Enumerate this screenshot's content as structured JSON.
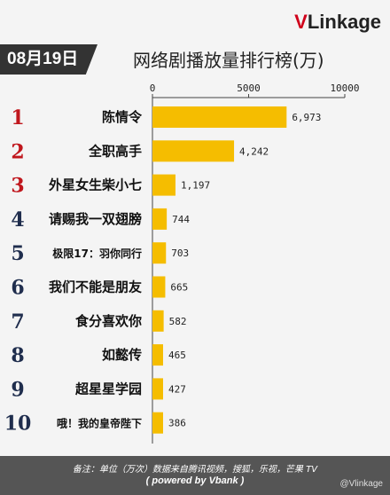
{
  "logo": {
    "highlight": "V",
    "rest": "Linkage"
  },
  "date_label": "08月19日",
  "chart_data": {
    "type": "bar",
    "orientation": "horizontal",
    "title": "网络剧播放量排行榜(万)",
    "ranks": [
      "1",
      "2",
      "3",
      "4",
      "5",
      "6",
      "7",
      "8",
      "9",
      "10"
    ],
    "categories": [
      "陈情令",
      "全职高手",
      "外星女生柴小七",
      "请赐我一双翅膀",
      "极限17：羽你同行",
      "我们不能是朋友",
      "食分喜欢你",
      "如懿传",
      "超星星学园",
      "哦！我的皇帝陛下"
    ],
    "values": [
      6973,
      4242,
      1197,
      744,
      703,
      665,
      582,
      465,
      427,
      386
    ],
    "value_labels": [
      "6,973",
      "4,242",
      "1,197",
      "744",
      "703",
      "665",
      "582",
      "465",
      "427",
      "386"
    ],
    "xlim": [
      0,
      10000
    ],
    "xticks": [
      0,
      5000,
      10000
    ],
    "xtick_labels": [
      "0",
      "5000",
      "10000"
    ],
    "rank_colors": [
      "#c0161c",
      "#c0161c",
      "#c0161c",
      "#1f2d4d",
      "#1f2d4d",
      "#1f2d4d",
      "#1f2d4d",
      "#1f2d4d",
      "#1f2d4d",
      "#1f2d4d"
    ],
    "bar_color": "#f5bd00",
    "grid": false,
    "legend": "none"
  },
  "footer": {
    "note": "备注：单位（万次）数据来自腾讯视频，搜狐，乐视，芒果 TV",
    "credit": "( powered by Vbank )"
  },
  "watermark": "@Vlinkage"
}
